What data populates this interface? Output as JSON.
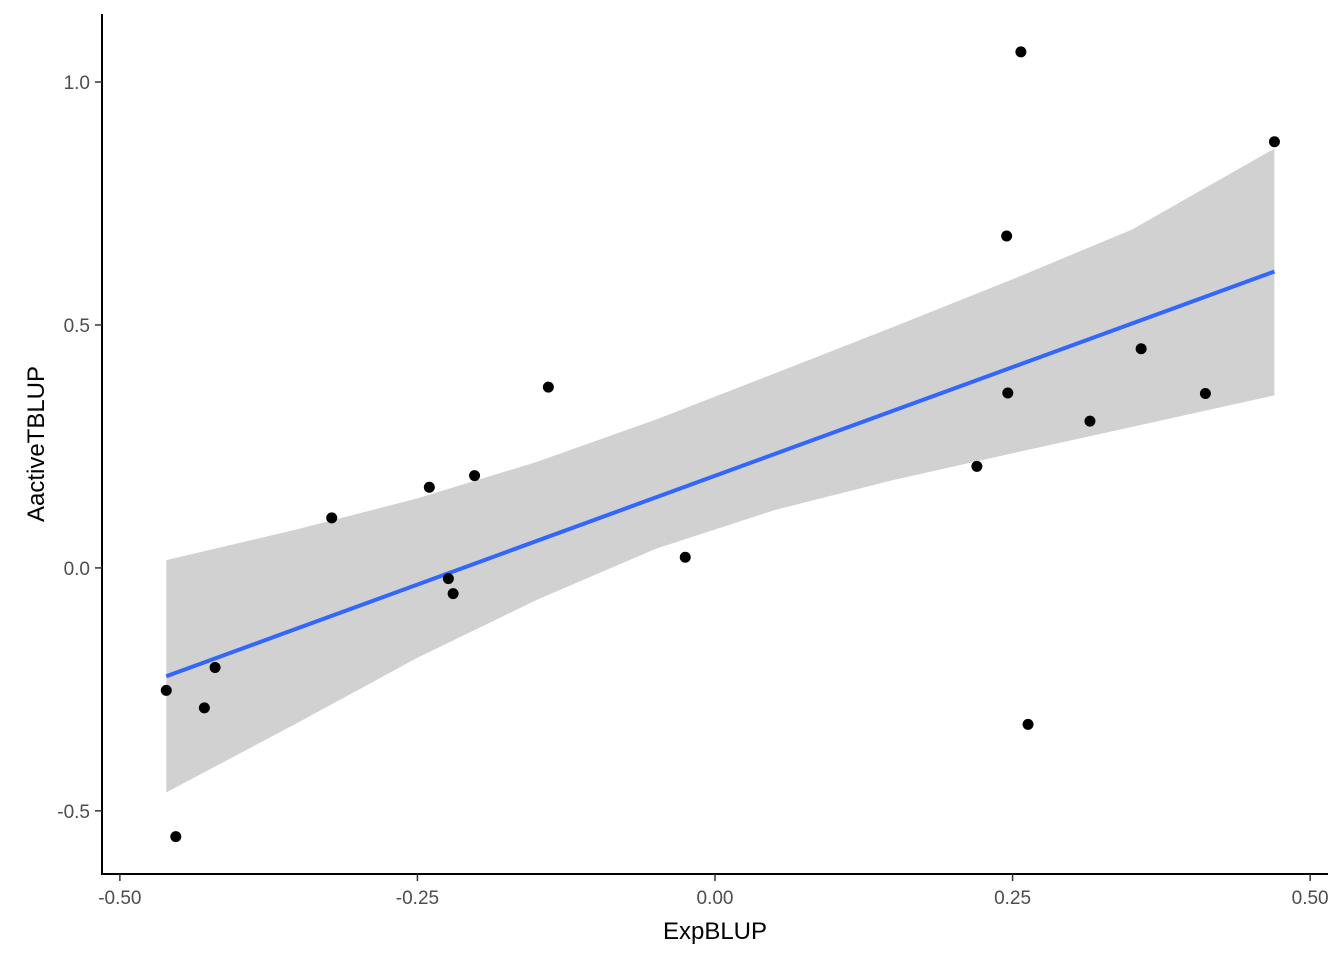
{
  "chart_data": {
    "type": "scatter",
    "title": "",
    "xlabel": "ExpBLUP",
    "ylabel": "AactiveTBLUP",
    "xlim": [
      -0.515,
      0.515
    ],
    "ylim": [
      -0.63,
      1.14
    ],
    "x_ticks": [
      -0.5,
      -0.25,
      0.0,
      0.25,
      0.5
    ],
    "x_tick_labels": [
      "-0.50",
      "-0.25",
      "0.00",
      "0.25",
      "0.50"
    ],
    "y_ticks": [
      -0.5,
      0.0,
      0.5,
      1.0
    ],
    "y_tick_labels": [
      "-0.5",
      "0.0",
      "0.5",
      "1.0"
    ],
    "grid": false,
    "points": [
      {
        "x": -0.461,
        "y": -0.252
      },
      {
        "x": -0.453,
        "y": -0.553
      },
      {
        "x": -0.429,
        "y": -0.288
      },
      {
        "x": -0.42,
        "y": -0.205
      },
      {
        "x": -0.322,
        "y": 0.103
      },
      {
        "x": -0.24,
        "y": 0.166
      },
      {
        "x": -0.224,
        "y": -0.022
      },
      {
        "x": -0.22,
        "y": -0.053
      },
      {
        "x": -0.202,
        "y": 0.19
      },
      {
        "x": -0.14,
        "y": 0.372
      },
      {
        "x": -0.025,
        "y": 0.022
      },
      {
        "x": 0.22,
        "y": 0.209
      },
      {
        "x": 0.245,
        "y": 0.683
      },
      {
        "x": 0.246,
        "y": 0.36
      },
      {
        "x": 0.257,
        "y": 1.062
      },
      {
        "x": 0.263,
        "y": -0.322
      },
      {
        "x": 0.315,
        "y": 0.302
      },
      {
        "x": 0.358,
        "y": 0.451
      },
      {
        "x": 0.412,
        "y": 0.359
      },
      {
        "x": 0.47,
        "y": 0.877
      }
    ],
    "fit_line": {
      "method": "linear",
      "color": "#3366FF",
      "x": [
        -0.461,
        0.47
      ],
      "y": [
        -0.223,
        0.61
      ]
    },
    "confidence_band": {
      "color": "#999999",
      "x": [
        -0.461,
        -0.35,
        -0.25,
        -0.15,
        -0.05,
        0.05,
        0.15,
        0.25,
        0.35,
        0.47
      ],
      "upper": [
        0.016,
        0.08,
        0.143,
        0.218,
        0.305,
        0.4,
        0.496,
        0.594,
        0.696,
        0.863
      ],
      "lower": [
        -0.462,
        -0.318,
        -0.185,
        -0.066,
        0.039,
        0.119,
        0.181,
        0.236,
        0.29,
        0.355
      ]
    }
  }
}
